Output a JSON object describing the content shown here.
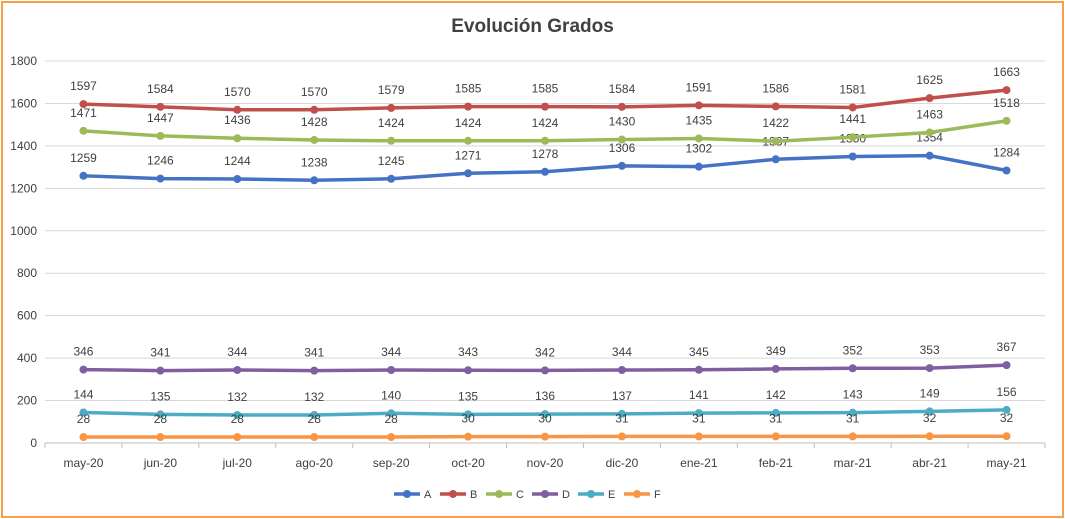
{
  "chart_data": {
    "type": "line",
    "title": "Evolución Grados",
    "xlabel": "",
    "ylabel": "",
    "ylim": [
      0,
      1800
    ],
    "yticks": [
      "0",
      "200",
      "400",
      "600",
      "800",
      "1000",
      "1200",
      "1400",
      "1600",
      "1800"
    ],
    "grid": true,
    "legend_position": "bottom",
    "categories": [
      "may-20",
      "jun-20",
      "jul-20",
      "ago-20",
      "sep-20",
      "oct-20",
      "nov-20",
      "dic-20",
      "ene-21",
      "feb-21",
      "mar-21",
      "abr-21",
      "may-21"
    ],
    "series": [
      {
        "name": "A",
        "color": "#4472c4",
        "values": [
          1259,
          1246,
          1244,
          1238,
          1245,
          1271,
          1278,
          1306,
          1302,
          1337,
          1350,
          1354,
          1284
        ]
      },
      {
        "name": "B",
        "color": "#c0504d",
        "values": [
          1597,
          1584,
          1570,
          1570,
          1579,
          1585,
          1585,
          1584,
          1591,
          1586,
          1581,
          1625,
          1663
        ]
      },
      {
        "name": "C",
        "color": "#9bbb59",
        "values": [
          1471,
          1447,
          1436,
          1428,
          1424,
          1424,
          1424,
          1430,
          1435,
          1422,
          1441,
          1463,
          1518
        ]
      },
      {
        "name": "D",
        "color": "#7f5fa0",
        "values": [
          346,
          341,
          344,
          341,
          344,
          343,
          342,
          344,
          345,
          349,
          352,
          353,
          367
        ]
      },
      {
        "name": "E",
        "color": "#4bacc6",
        "values": [
          144,
          135,
          132,
          132,
          140,
          135,
          136,
          137,
          141,
          142,
          143,
          149,
          156
        ]
      },
      {
        "name": "F",
        "color": "#f79646",
        "values": [
          28,
          28,
          28,
          28,
          28,
          30,
          30,
          31,
          31,
          31,
          31,
          32,
          32
        ]
      }
    ]
  }
}
